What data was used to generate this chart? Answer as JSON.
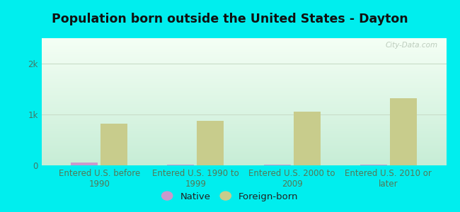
{
  "title": "Population born outside the United States - Dayton",
  "categories": [
    "Entered U.S. before\n1990",
    "Entered U.S. 1990 to\n1999",
    "Entered U.S. 2000 to\n2009",
    "Entered U.S. 2010 or\nlater"
  ],
  "native_values": [
    50,
    10,
    10,
    20
  ],
  "foreign_values": [
    820,
    870,
    1050,
    1320
  ],
  "native_color": "#cc99cc",
  "foreign_color": "#c8cc8c",
  "background_outer": "#00eeee",
  "gradient_top": "#f5fff5",
  "gradient_bottom": "#c8ecd8",
  "grid_color": "#c8dcc8",
  "bar_width": 0.28,
  "ylim": [
    0,
    2500
  ],
  "ytick_labels": [
    "0",
    "1k",
    "2k"
  ],
  "ytick_vals": [
    0,
    1000,
    2000
  ],
  "title_fontsize": 12.5,
  "tick_fontsize": 8.5,
  "legend_fontsize": 9.5,
  "watermark": "City-Data.com",
  "axis_label_color": "#557755",
  "tick_label_color": "#447766",
  "title_color": "#111111",
  "legend_text_color": "#222222"
}
